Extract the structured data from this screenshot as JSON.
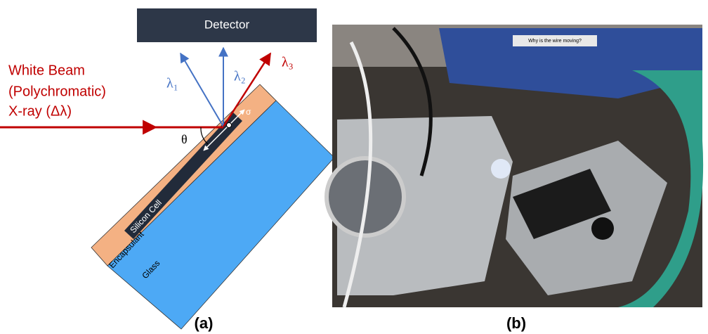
{
  "diagram": {
    "detector": "Detector",
    "wavelengths": [
      "λ₁",
      "λ₂",
      "λ₃"
    ],
    "beam_label": [
      "White Beam",
      "(Polychromatic)",
      "X-ray (Δλ)"
    ],
    "angle": "θ",
    "stress": "σ",
    "layers": {
      "cell": "Silicon Cell",
      "encapsulant": "Encapsulant",
      "glass": "Glass"
    },
    "caption": "(a)"
  },
  "photo": {
    "sign": "Why is the wire moving?",
    "caption": "(b)"
  }
}
